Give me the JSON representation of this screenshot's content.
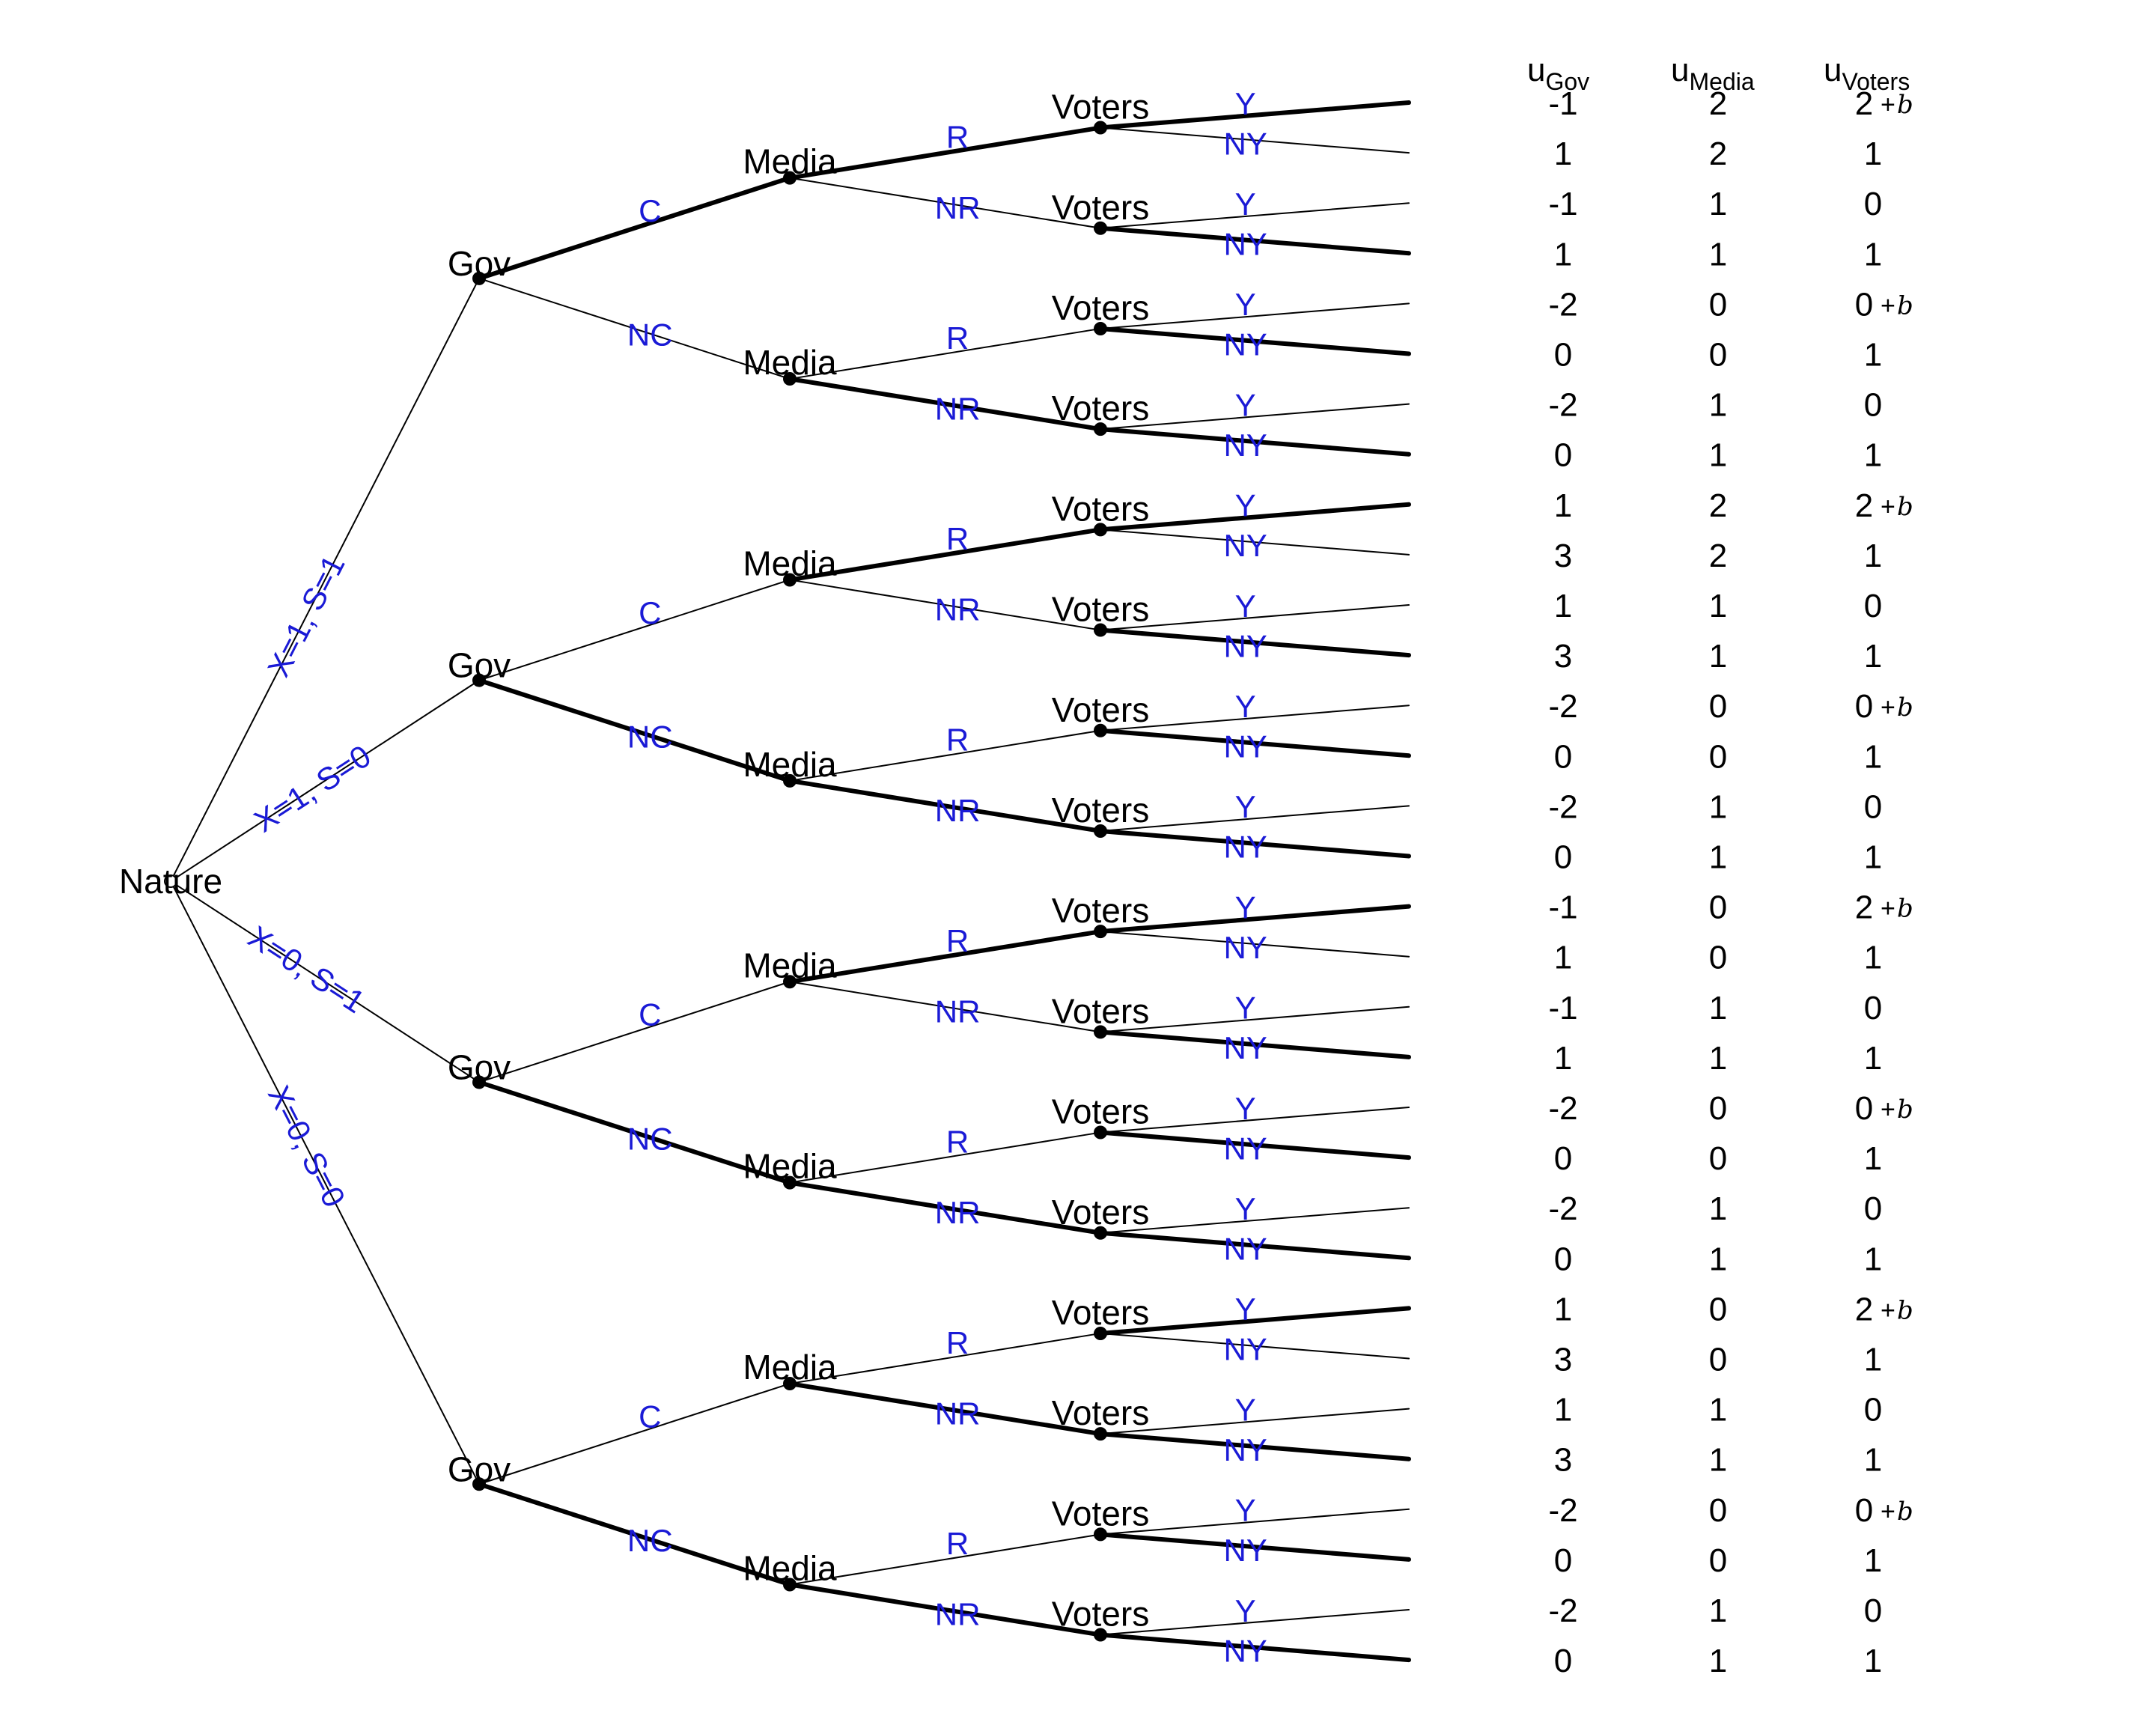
{
  "colors": {
    "edge": "#000000",
    "edge_label": "#1a1ad6",
    "background": "#ffffff"
  },
  "header": {
    "u_prefix": "u",
    "gov": "Gov",
    "media": "Media",
    "voters": "Voters"
  },
  "nodes": {
    "nature": "Nature",
    "gov": "Gov",
    "media": "Media",
    "voters": "Voters"
  },
  "nature_branches": [
    "X=1, S=1",
    "X=1, S=0",
    "X=0, S=1",
    "X=0, S=0"
  ],
  "gov_actions": [
    "C",
    "NC"
  ],
  "media_actions": [
    "R",
    "NR"
  ],
  "voter_actions": [
    "Y",
    "NY"
  ],
  "b_symbol": "b",
  "plus_symbol": "+",
  "highlights": {
    "gov": [
      0,
      1,
      1,
      1
    ],
    "media": [
      0,
      1,
      0,
      1,
      0,
      1,
      1,
      1
    ],
    "voters": [
      0,
      1,
      1,
      1,
      0,
      1,
      1,
      1,
      0,
      1,
      1,
      1,
      0,
      1,
      1,
      1
    ]
  },
  "payoffs": [
    {
      "gov": "-1",
      "media": "2",
      "voters": "2",
      "b": true
    },
    {
      "gov": "1",
      "media": "2",
      "voters": "1",
      "b": false
    },
    {
      "gov": "-1",
      "media": "1",
      "voters": "0",
      "b": false
    },
    {
      "gov": "1",
      "media": "1",
      "voters": "1",
      "b": false
    },
    {
      "gov": "-2",
      "media": "0",
      "voters": "0",
      "b": true
    },
    {
      "gov": "0",
      "media": "0",
      "voters": "1",
      "b": false
    },
    {
      "gov": "-2",
      "media": "1",
      "voters": "0",
      "b": false
    },
    {
      "gov": "0",
      "media": "1",
      "voters": "1",
      "b": false
    },
    {
      "gov": "1",
      "media": "2",
      "voters": "2",
      "b": true
    },
    {
      "gov": "3",
      "media": "2",
      "voters": "1",
      "b": false
    },
    {
      "gov": "1",
      "media": "1",
      "voters": "0",
      "b": false
    },
    {
      "gov": "3",
      "media": "1",
      "voters": "1",
      "b": false
    },
    {
      "gov": "-2",
      "media": "0",
      "voters": "0",
      "b": true
    },
    {
      "gov": "0",
      "media": "0",
      "voters": "1",
      "b": false
    },
    {
      "gov": "-2",
      "media": "1",
      "voters": "0",
      "b": false
    },
    {
      "gov": "0",
      "media": "1",
      "voters": "1",
      "b": false
    },
    {
      "gov": "-1",
      "media": "0",
      "voters": "2",
      "b": true
    },
    {
      "gov": "1",
      "media": "0",
      "voters": "1",
      "b": false
    },
    {
      "gov": "-1",
      "media": "1",
      "voters": "0",
      "b": false
    },
    {
      "gov": "1",
      "media": "1",
      "voters": "1",
      "b": false
    },
    {
      "gov": "-2",
      "media": "0",
      "voters": "0",
      "b": true
    },
    {
      "gov": "0",
      "media": "0",
      "voters": "1",
      "b": false
    },
    {
      "gov": "-2",
      "media": "1",
      "voters": "0",
      "b": false
    },
    {
      "gov": "0",
      "media": "1",
      "voters": "1",
      "b": false
    },
    {
      "gov": "1",
      "media": "0",
      "voters": "2",
      "b": true
    },
    {
      "gov": "3",
      "media": "0",
      "voters": "1",
      "b": false
    },
    {
      "gov": "1",
      "media": "1",
      "voters": "0",
      "b": false
    },
    {
      "gov": "3",
      "media": "1",
      "voters": "1",
      "b": false
    },
    {
      "gov": "-2",
      "media": "0",
      "voters": "0",
      "b": true
    },
    {
      "gov": "0",
      "media": "0",
      "voters": "1",
      "b": false
    },
    {
      "gov": "-2",
      "media": "1",
      "voters": "0",
      "b": false
    },
    {
      "gov": "0",
      "media": "1",
      "voters": "1",
      "b": false
    }
  ]
}
